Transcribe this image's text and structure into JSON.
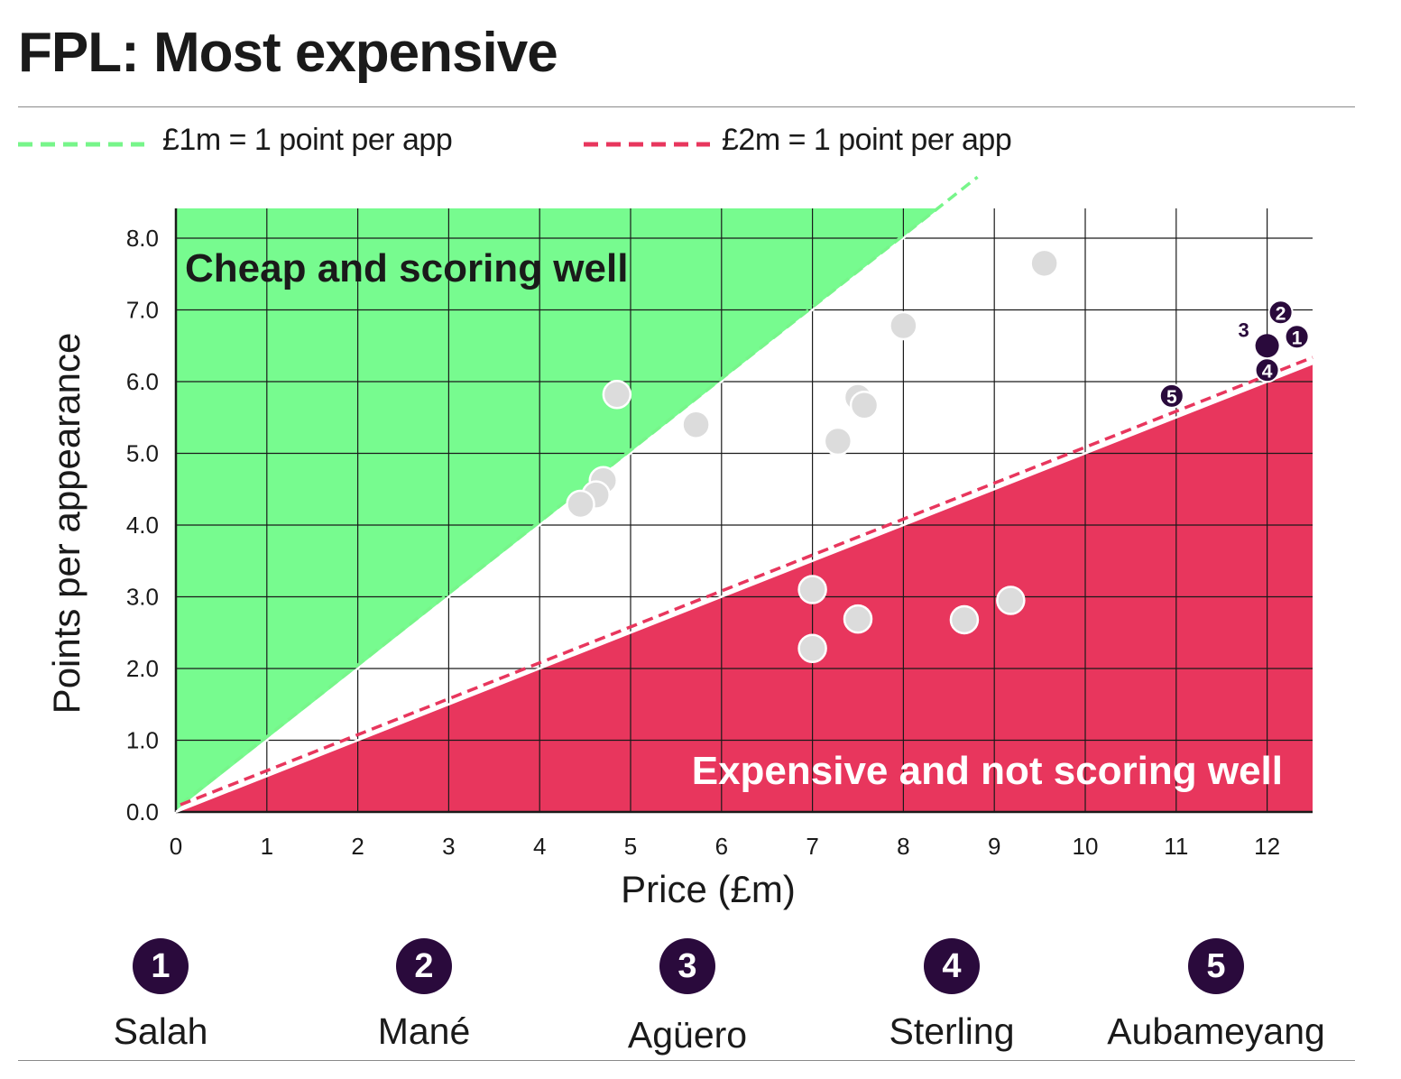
{
  "title": "FPL: Most expensive",
  "legend": [
    {
      "label": "£1m = 1 point per app",
      "color": "#77f58a",
      "style": "dashed"
    },
    {
      "label": "£2m = 1 point per app",
      "color": "#e8365d",
      "style": "dashed"
    }
  ],
  "regions": {
    "green_label": "Cheap and scoring well",
    "green_color": "#77fb8f",
    "red_label": "Expensive and not scoring well",
    "red_color": "#e8365d"
  },
  "chart_data": {
    "type": "scatter",
    "xlabel": "Price (£m)",
    "ylabel": "Points per appearance",
    "xlim": [
      0,
      12.5
    ],
    "ylim": [
      0,
      8.4
    ],
    "x_ticks": [
      "0",
      "1",
      "2",
      "3",
      "4",
      "5",
      "6",
      "7",
      "8",
      "9",
      "10",
      "11",
      "12"
    ],
    "y_ticks": [
      "0.0",
      "1.0",
      "2.0",
      "3.0",
      "4.0",
      "5.0",
      "6.0",
      "7.0",
      "8.0"
    ],
    "grid": true,
    "reference_lines": [
      {
        "label": "£1m = 1 point per app",
        "slope": 1.0
      },
      {
        "label": "£2m = 1 point per app",
        "slope": 0.5
      }
    ],
    "players": [
      {
        "x": 9.55,
        "y": 7.65
      },
      {
        "x": 8.0,
        "y": 6.78
      },
      {
        "x": 4.85,
        "y": 5.82
      },
      {
        "x": 5.72,
        "y": 5.4
      },
      {
        "x": 7.5,
        "y": 5.78
      },
      {
        "x": 7.57,
        "y": 5.67
      },
      {
        "x": 7.28,
        "y": 5.17
      },
      {
        "x": 4.7,
        "y": 4.62
      },
      {
        "x": 4.62,
        "y": 4.42
      },
      {
        "x": 4.45,
        "y": 4.29
      },
      {
        "x": 7.0,
        "y": 3.1
      },
      {
        "x": 7.5,
        "y": 2.69
      },
      {
        "x": 7.0,
        "y": 2.28
      },
      {
        "x": 8.67,
        "y": 2.68
      },
      {
        "x": 9.18,
        "y": 2.95
      }
    ],
    "highlighted": [
      {
        "rank": "1",
        "name": "Salah",
        "x": 12.0,
        "y": 6.5
      },
      {
        "rank": "2",
        "name": "Mané",
        "x": 12.0,
        "y": 6.5
      },
      {
        "rank": "3",
        "name": "Agüero",
        "x": 12.0,
        "y": 6.5
      },
      {
        "rank": "4",
        "name": "Sterling",
        "x": 12.0,
        "y": 6.5
      },
      {
        "rank": "5",
        "name": "Aubameyang",
        "x": 11.0,
        "y": 5.8
      }
    ]
  },
  "key": [
    {
      "num": "1",
      "name": "Salah"
    },
    {
      "num": "2",
      "name": "Mané"
    },
    {
      "num": "3",
      "name": "Agüero"
    },
    {
      "num": "4",
      "name": "Sterling"
    },
    {
      "num": "5",
      "name": "Aubameyang"
    }
  ]
}
